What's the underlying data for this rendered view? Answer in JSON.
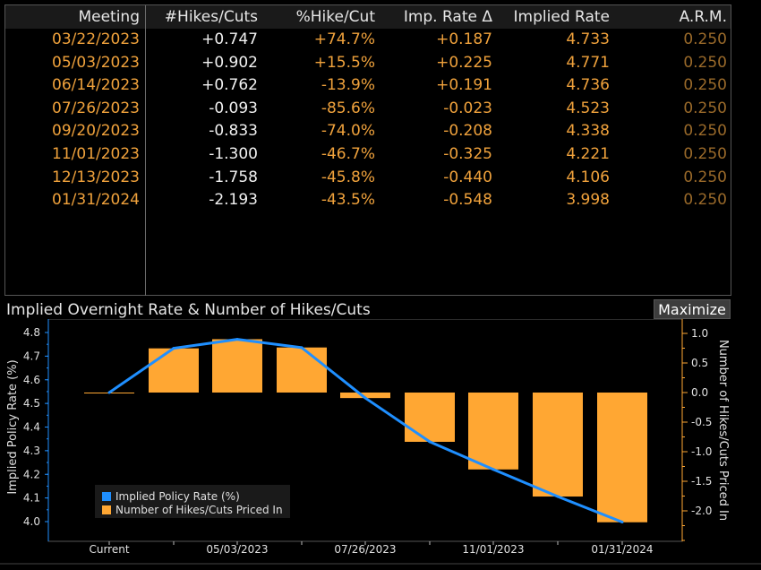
{
  "table": {
    "headers": [
      "Meeting",
      "#Hikes/Cuts",
      "%Hike/Cut",
      "Imp. Rate Δ",
      "Implied Rate",
      "A.R.M."
    ],
    "rows": [
      [
        "03/22/2023",
        "+0.747",
        "+74.7%",
        "+0.187",
        "4.733",
        "0.250"
      ],
      [
        "05/03/2023",
        "+0.902",
        "+15.5%",
        "+0.225",
        "4.771",
        "0.250"
      ],
      [
        "06/14/2023",
        "+0.762",
        "-13.9%",
        "+0.191",
        "4.736",
        "0.250"
      ],
      [
        "07/26/2023",
        "-0.093",
        "-85.6%",
        "-0.023",
        "4.523",
        "0.250"
      ],
      [
        "09/20/2023",
        "-0.833",
        "-74.0%",
        "-0.208",
        "4.338",
        "0.250"
      ],
      [
        "11/01/2023",
        "-1.300",
        "-46.7%",
        "-0.325",
        "4.221",
        "0.250"
      ],
      [
        "12/13/2023",
        "-1.758",
        "-45.8%",
        "-0.440",
        "4.106",
        "0.250"
      ],
      [
        "01/31/2024",
        "-2.193",
        "-43.5%",
        "-0.548",
        "3.998",
        "0.250"
      ]
    ]
  },
  "chart_title": "Implied Overnight Rate & Number of Hikes/Cuts",
  "maximize_label": "Maximize",
  "chart_data": {
    "type": "bar",
    "categories": [
      "Current",
      "03/22/2023",
      "05/03/2023",
      "06/14/2023",
      "07/26/2023",
      "09/20/2023",
      "11/01/2023",
      "12/13/2023",
      "01/31/2024"
    ],
    "x_tick_labels": [
      "Current",
      "",
      "05/03/2023",
      "",
      "07/26/2023",
      "",
      "11/01/2023",
      "",
      "01/31/2024"
    ],
    "series": [
      {
        "name": "Implied Policy Rate (%)",
        "type": "line",
        "axis": "left",
        "color": "#1f8fff",
        "values": [
          4.546,
          4.733,
          4.771,
          4.736,
          4.523,
          4.338,
          4.221,
          4.106,
          3.998
        ]
      },
      {
        "name": "Number of Hikes/Cuts Priced In",
        "type": "bar",
        "axis": "right",
        "color": "#ffa733",
        "values": [
          0.0,
          0.747,
          0.902,
          0.762,
          -0.093,
          -0.833,
          -1.3,
          -1.758,
          -2.193
        ]
      }
    ],
    "ylabel": "Implied Policy Rate (%)",
    "ylim": [
      3.99,
      4.82
    ],
    "yticks": [
      "4.8",
      "4.7",
      "4.6",
      "4.5",
      "4.4",
      "4.3",
      "4.2",
      "4.1",
      "4.0"
    ],
    "y2label": "Number of Hikes/Cuts Priced In",
    "y2lim": [
      -2.5,
      1.1
    ],
    "y2ticks": [
      "1.0",
      "0.5",
      "0.0",
      "-0.5",
      "-1.0",
      "-1.5",
      "-2.0"
    ],
    "legend_position": "bottom-left"
  }
}
